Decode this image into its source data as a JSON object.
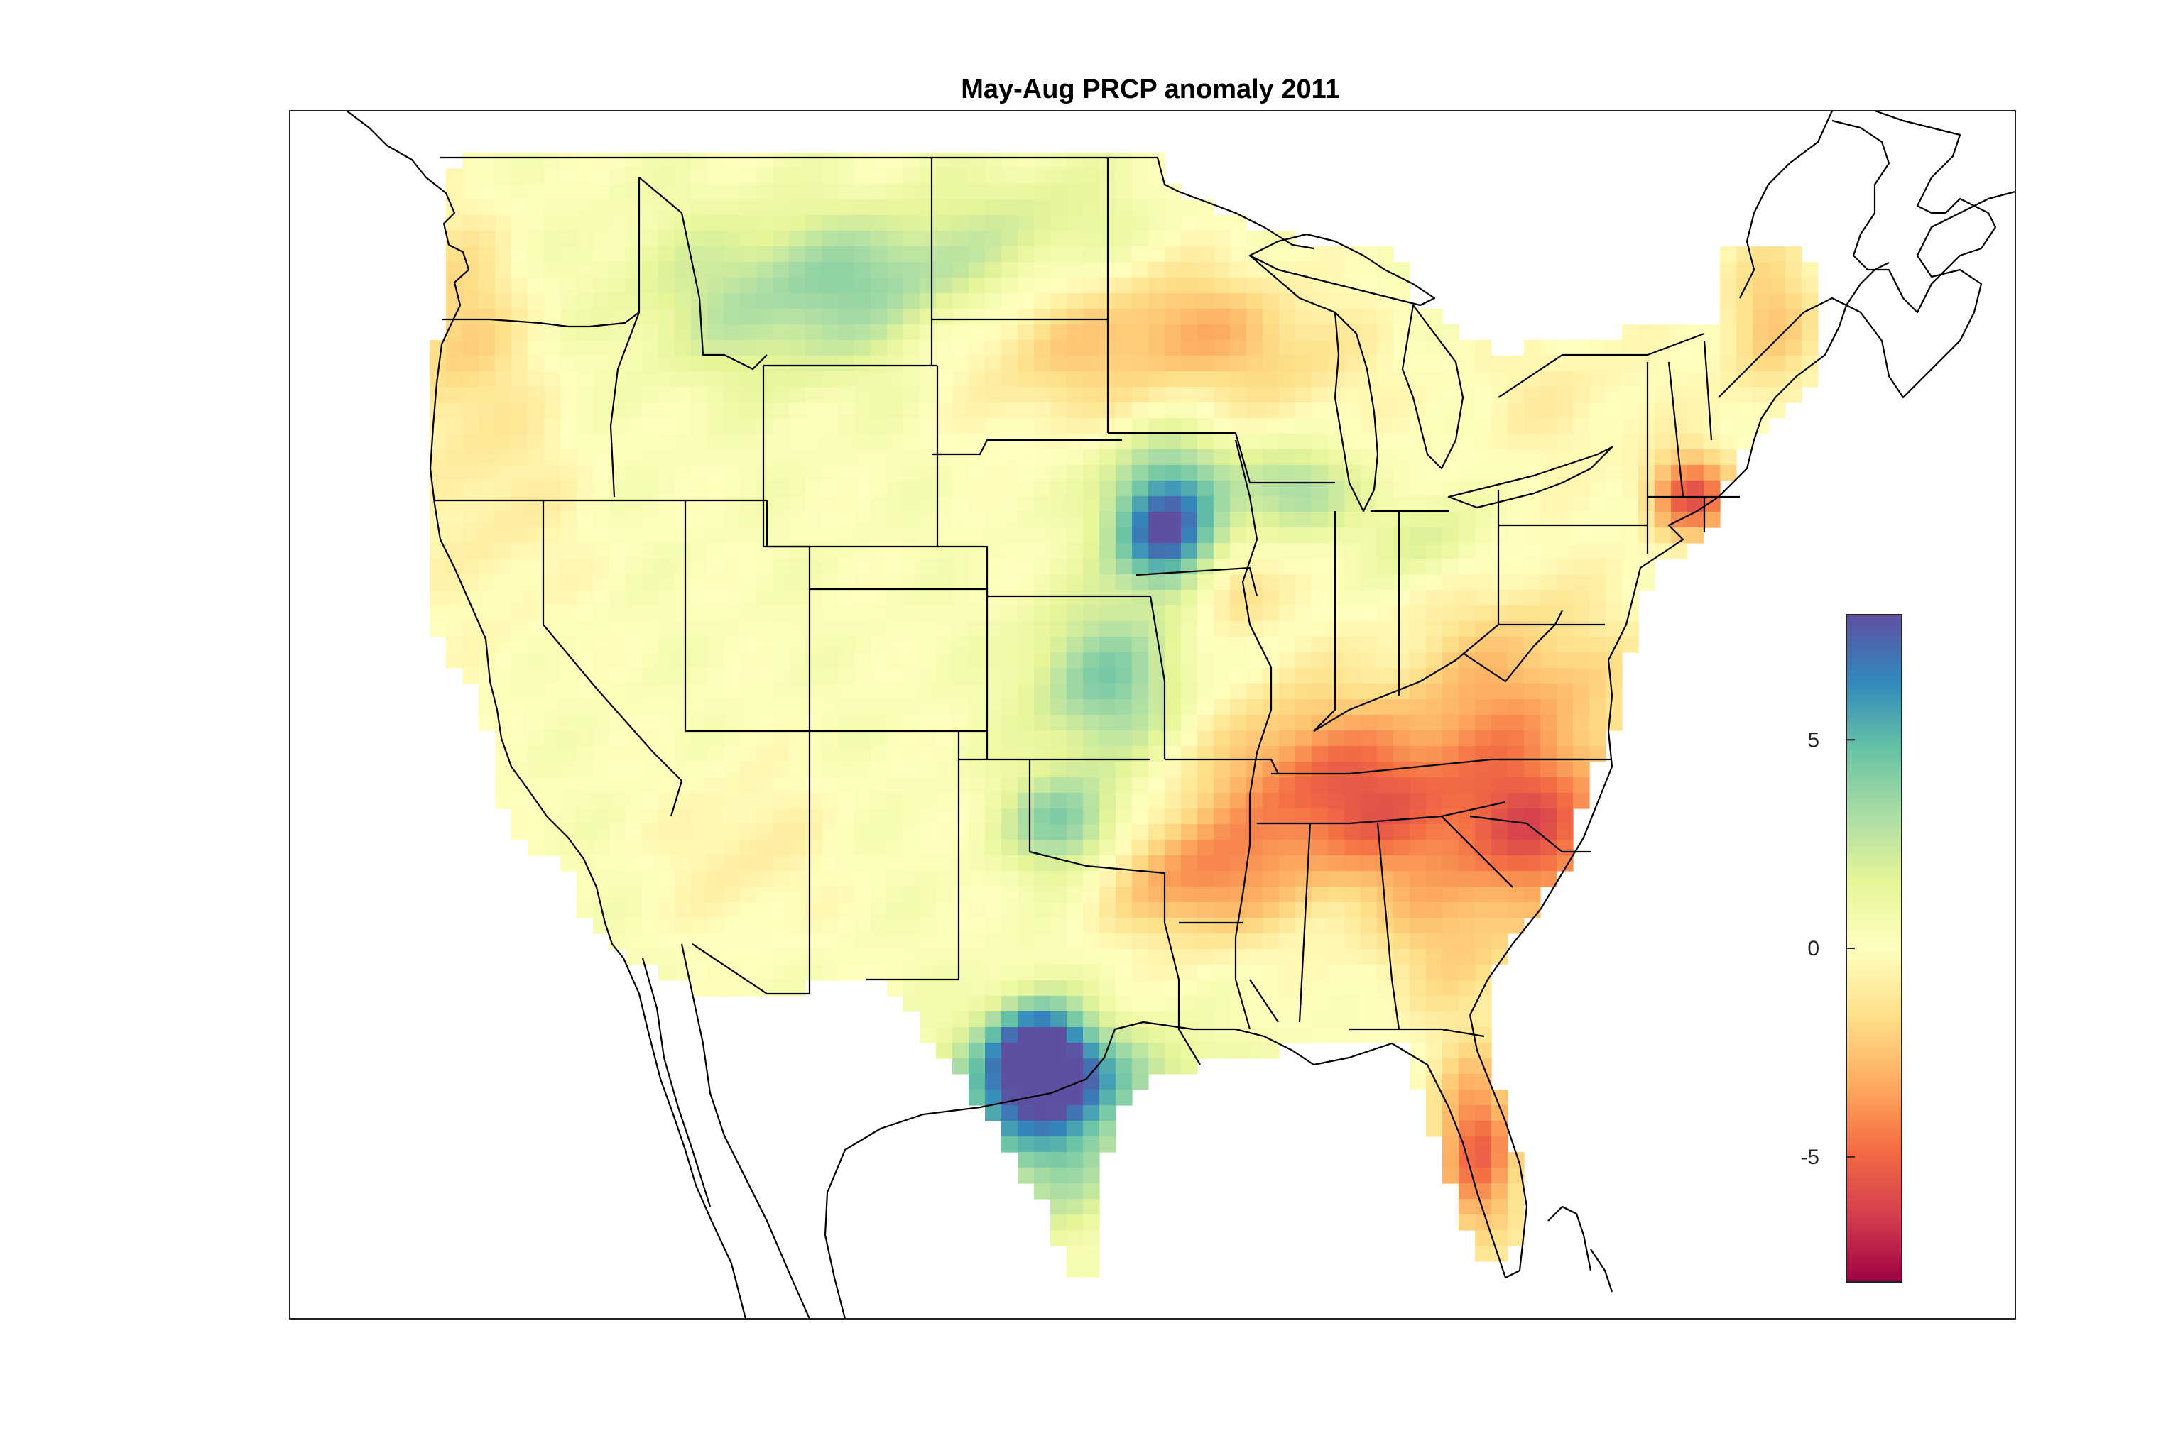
{
  "title": "May-Aug PRCP anomaly 2011",
  "colorbar": {
    "ticks": [
      5,
      0,
      -5
    ],
    "tick_labels": [
      "5",
      "0",
      "-5"
    ],
    "range": [
      -8,
      8
    ],
    "colormap": "spectral",
    "stops": [
      "#9e0142",
      "#d53e4f",
      "#f46d43",
      "#fdae61",
      "#fee08b",
      "#ffffbf",
      "#e6f598",
      "#abdda4",
      "#66c2a5",
      "#3288bd",
      "#5e4fa2"
    ]
  },
  "chart_data": {
    "type": "heatmap",
    "title": "May-Aug PRCP anomaly 2011",
    "variable": "PRCP anomaly",
    "period": "May-Aug 2011",
    "region": "Contiguous United States",
    "zlim": [
      -8,
      8
    ],
    "colorbar_ticks": [
      -5,
      0,
      5
    ],
    "regions": [
      {
        "name": "Pacific Northwest coast",
        "anomaly": -2.0
      },
      {
        "name": "Northern Rockies / Montana",
        "anomaly": 1.5
      },
      {
        "name": "Great Basin",
        "anomaly": 0.5
      },
      {
        "name": "Southwest",
        "anomaly": -1.0
      },
      {
        "name": "Northern Plains",
        "anomaly": 1.0
      },
      {
        "name": "Southeast Nebraska",
        "anomaly": 6.5
      },
      {
        "name": "Kansas",
        "anomaly": 4.0
      },
      {
        "name": "Minnesota / Wisconsin",
        "anomaly": -2.0
      },
      {
        "name": "Arkansas / Louisiana",
        "anomaly": -3.5
      },
      {
        "name": "Tennessee / Carolinas / Virginia",
        "anomaly": -3.5
      },
      {
        "name": "South Texas",
        "anomaly": 7.0
      },
      {
        "name": "Texas Gulf coast",
        "anomaly": 3.5
      },
      {
        "name": "Florida",
        "anomaly": -5.0
      },
      {
        "name": "Southern New England",
        "anomaly": -5.5
      },
      {
        "name": "Maine",
        "anomaly": -3.0
      },
      {
        "name": "Ohio Valley / Indiana",
        "anomaly": 1.0
      }
    ]
  }
}
